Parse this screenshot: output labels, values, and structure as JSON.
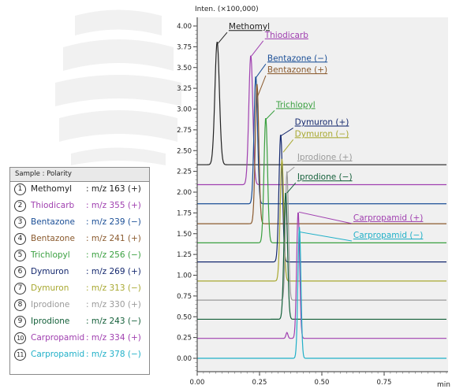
{
  "legend": {
    "title": "Sample : Polarity",
    "items": [
      {
        "num": "1",
        "name": "Methomyl",
        "polarity": ": m/z 163 (+)",
        "color": "#222222"
      },
      {
        "num": "2",
        "name": "Thiodicarb",
        "polarity": ": m/z 355 (+)",
        "color": "#a040b0"
      },
      {
        "num": "3",
        "name": "Bentazone",
        "polarity": ": m/z 239 (−)",
        "color": "#1a4e96"
      },
      {
        "num": "4",
        "name": "Bentazone",
        "polarity": ": m/z 241 (+)",
        "color": "#8a5a2e"
      },
      {
        "num": "5",
        "name": "Trichlopyl",
        "polarity": ": m/z 256 (−)",
        "color": "#3aa040"
      },
      {
        "num": "6",
        "name": "Dymuron",
        "polarity": ": m/z 269 (+)",
        "color": "#14286e"
      },
      {
        "num": "7",
        "name": "Dymuron",
        "polarity": ": m/z 313 (−)",
        "color": "#a8a830"
      },
      {
        "num": "8",
        "name": "Iprodione",
        "polarity": ": m/z 330 (+)",
        "color": "#9a9a9a"
      },
      {
        "num": "9",
        "name": "Iprodione",
        "polarity": ": m/z 243 (−)",
        "color": "#14603a"
      },
      {
        "num": "10",
        "name": "Carpropamid",
        "polarity": ": m/z 334 (+)",
        "color": "#a040b0"
      },
      {
        "num": "11",
        "name": "Carpropamid",
        "polarity": ": m/z 378 (−)",
        "color": "#20b0c8"
      }
    ]
  },
  "chart_data": {
    "type": "line",
    "ylabel": "Inten. (×100,000)",
    "xlabel": "min",
    "xlim": [
      0.0,
      1.0
    ],
    "ylim": [
      0.0,
      4.0
    ],
    "x_ticks": [
      "0.00",
      "0.25",
      "0.50",
      "0.75"
    ],
    "y_ticks": [
      "0.00",
      "0.25",
      "0.50",
      "0.75",
      "1.00",
      "1.25",
      "1.50",
      "1.75",
      "2.00",
      "2.25",
      "2.50",
      "2.75",
      "3.00",
      "3.25",
      "3.50",
      "3.75",
      "4.00"
    ],
    "series": [
      {
        "name": "Methomyl",
        "color": "#222222",
        "baseline": 2.33,
        "peak_rt": 0.08,
        "peak_height": 3.81,
        "width": 0.009
      },
      {
        "name": "Thiodicarb",
        "color": "#a040b0",
        "baseline": 2.09,
        "peak_rt": 0.215,
        "peak_height": 3.65,
        "width": 0.008
      },
      {
        "name": "Bentazone",
        "color": "#1a4e96",
        "baseline": 1.86,
        "peak_rt": 0.235,
        "peak_height": 3.4,
        "width": 0.007
      },
      {
        "name": "Bentazone",
        "color": "#8a5a2e",
        "baseline": 1.62,
        "peak_rt": 0.24,
        "peak_height": 3.3,
        "width": 0.007
      },
      {
        "name": "Trichlopyl",
        "color": "#3aa040",
        "baseline": 1.39,
        "peak_rt": 0.275,
        "peak_height": 2.9,
        "width": 0.007
      },
      {
        "name": "Dymuron",
        "color": "#14286e",
        "baseline": 1.16,
        "peak_rt": 0.335,
        "peak_height": 2.7,
        "width": 0.007
      },
      {
        "name": "Dymuron",
        "color": "#a8a830",
        "baseline": 0.93,
        "peak_rt": 0.34,
        "peak_height": 2.4,
        "width": 0.007
      },
      {
        "name": "Iprodione",
        "color": "#9a9a9a",
        "baseline": 0.7,
        "peak_rt": 0.36,
        "peak_height": 2.25,
        "width": 0.006
      },
      {
        "name": "Iprodione",
        "color": "#14603a",
        "baseline": 0.47,
        "peak_rt": 0.355,
        "peak_height": 2.0,
        "width": 0.007
      },
      {
        "name": "Carpropamid",
        "color": "#a040b0",
        "baseline": 0.24,
        "peak_rt": 0.405,
        "peak_height": 1.77,
        "width": 0.006,
        "minor_peak_rt": 0.36,
        "minor_peak_height": 0.31
      },
      {
        "name": "Carpropamid",
        "color": "#20b0c8",
        "baseline": 0.0,
        "peak_rt": 0.41,
        "peak_height": 1.58,
        "width": 0.006
      }
    ],
    "annotations": [
      {
        "text": "Methomyl",
        "color": "#222222",
        "underline": true,
        "from": [
          0.083,
          3.79
        ],
        "to": [
          0.12,
          3.96
        ],
        "label_at": [
          0.12,
          3.96
        ]
      },
      {
        "text": "Thiodicarb",
        "color": "#a040b0",
        "underline": true,
        "from": [
          0.218,
          3.64
        ],
        "to": [
          0.265,
          3.86
        ],
        "label_at": [
          0.265,
          3.86
        ]
      },
      {
        "text": "Bentazone (−)",
        "color": "#1a4e96",
        "underline": true,
        "from": [
          0.236,
          3.38
        ],
        "to": [
          0.275,
          3.58
        ],
        "label_at": [
          0.275,
          3.58
        ]
      },
      {
        "text": "Bentazone (+)",
        "color": "#8a5a2e",
        "underline": true,
        "from": [
          0.242,
          3.15
        ],
        "to": [
          0.275,
          3.44
        ],
        "label_at": [
          0.275,
          3.44
        ]
      },
      {
        "text": "Trichlopyl",
        "color": "#3aa040",
        "underline": true,
        "from": [
          0.277,
          2.88
        ],
        "to": [
          0.31,
          3.02
        ],
        "label_at": [
          0.31,
          3.02
        ]
      },
      {
        "text": "Dymuron (+)",
        "color": "#14286e",
        "underline": true,
        "from": [
          0.337,
          2.68
        ],
        "to": [
          0.385,
          2.81
        ],
        "label_at": [
          0.385,
          2.81
        ]
      },
      {
        "text": "Dymuron (−)",
        "color": "#a8a830",
        "underline": true,
        "from": [
          0.345,
          2.48
        ],
        "to": [
          0.385,
          2.67
        ],
        "label_at": [
          0.385,
          2.67
        ]
      },
      {
        "text": "Iprodione (+)",
        "color": "#9a9a9a",
        "underline": true,
        "from": [
          0.36,
          2.23
        ],
        "to": [
          0.39,
          2.34
        ],
        "label_at": [
          0.395,
          2.39
        ]
      },
      {
        "text": "Iprodione (−)",
        "color": "#14603a",
        "underline": true,
        "from": [
          0.36,
          1.99
        ],
        "to": [
          0.395,
          2.15
        ],
        "label_at": [
          0.395,
          2.15
        ]
      },
      {
        "text": "Carpropamid (+)",
        "color": "#a040b0",
        "underline": true,
        "from": [
          0.408,
          1.76
        ],
        "to": [
          0.62,
          1.66
        ],
        "label_at": [
          0.62,
          1.66
        ]
      },
      {
        "text": "Carpropamid (−)",
        "color": "#20b0c8",
        "underline": true,
        "from": [
          0.413,
          1.52
        ],
        "to": [
          0.62,
          1.45
        ],
        "label_at": [
          0.62,
          1.45
        ]
      }
    ]
  }
}
